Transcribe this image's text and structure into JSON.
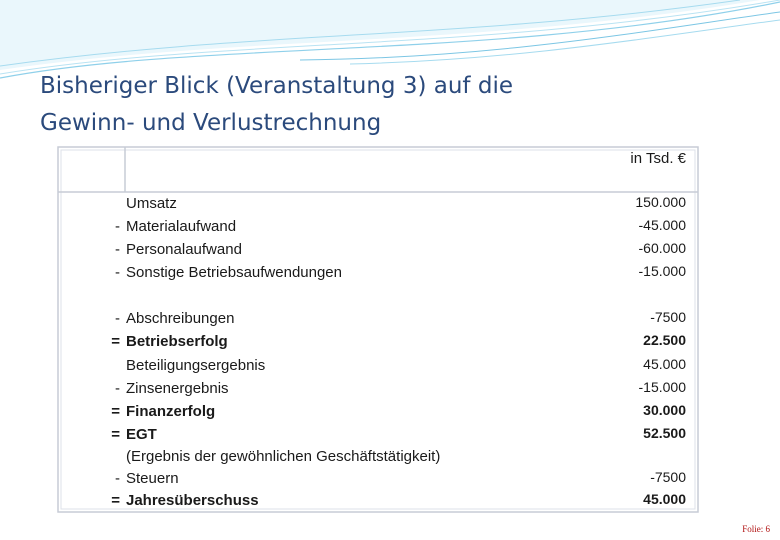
{
  "title": "Bisheriger Blick (Veranstaltung 3) auf die\nGewinn- und Verlustrechnung",
  "unit": "in Tsd. €",
  "rows": [
    {
      "label": "Umsatz",
      "value": "150.000"
    },
    {
      "sign": "-",
      "label": "Materialaufwand",
      "value": "-45.000"
    },
    {
      "sign": "-",
      "label": "Personalaufwand",
      "value": "-60.000"
    },
    {
      "sign": "-",
      "label": "Sonstige Betriebsaufwendungen",
      "value": "-15.000"
    },
    {
      "sign": "-",
      "label": "Abschreibungen",
      "value": "-7500"
    },
    {
      "sign": "=",
      "label": "Betriebserfolg",
      "value": "22.500",
      "bold": true
    },
    {
      "label": "Beteiligungsergebnis",
      "value": "45.000"
    },
    {
      "sign": "-",
      "label": "Zinsenergebnis",
      "value": "-15.000"
    },
    {
      "sign": "=",
      "label": "Finanzerfolg",
      "value": "30.000",
      "bold": true
    },
    {
      "sign": "=",
      "label": "EGT",
      "value": "52.500",
      "bold": true
    },
    {
      "label": "(Ergebnis der gewöhnlichen Geschäftstätigkeit)"
    },
    {
      "sign": "-",
      "label": "Steuern",
      "value": "-7500"
    },
    {
      "sign": "=",
      "label": "Jahresüberschuss",
      "value": "45.000",
      "bold": true
    }
  ],
  "footer": "Folie: 6"
}
